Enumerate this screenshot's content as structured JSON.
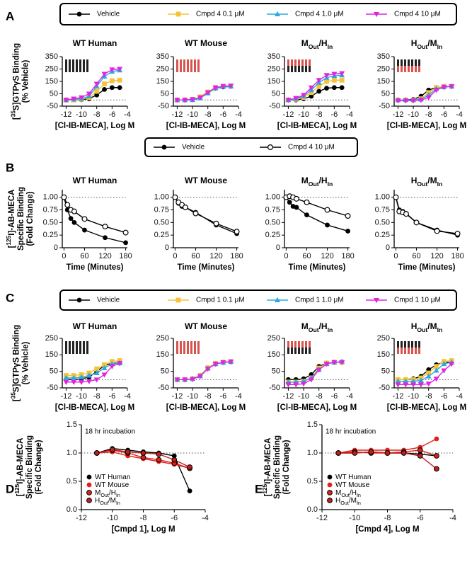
{
  "chart_data": [
    {
      "type": "line",
      "label": "A",
      "xlim": [
        -12.5,
        -4
      ],
      "xticks": [
        -12,
        -10,
        -8,
        -6,
        -4
      ],
      "ylim": [
        -50,
        350
      ],
      "yticks": [
        -50,
        50,
        150,
        250,
        350
      ],
      "reference_line": 0,
      "x": [
        -12,
        -11,
        -10,
        -9,
        -8,
        -7,
        -6,
        -5
      ],
      "xlabel": "[Cl-IB-MECA], Log M",
      "ylabel": [
        [
          {
            "text": "["
          },
          {
            "text": "35",
            "sup": true
          },
          {
            "text": "S]GTPγS Binding"
          }
        ],
        [
          {
            "text": "(% Vehicle)"
          }
        ]
      ],
      "series": [
        {
          "name": "Vehicle",
          "color": "#000000",
          "marker": "circle"
        },
        {
          "name": "Cmpd 4 0.1 μM",
          "color": "#f5c23a",
          "marker": "square"
        },
        {
          "name": "Cmpd 4 1.0 μM",
          "color": "#2aa8e0",
          "marker": "triangle-up"
        },
        {
          "name": "Cmpd 4 10 μM",
          "color": "#e024e0",
          "marker": "triangle-down"
        }
      ],
      "subplots": [
        {
          "title": [
            {
              "text": "WT Human"
            }
          ],
          "values": [
            [
              0,
              0,
              2,
              10,
              40,
              85,
              100,
              100
            ],
            [
              0,
              0,
              5,
              20,
              70,
              130,
              155,
              160
            ],
            [
              0,
              5,
              10,
              30,
              110,
              190,
              230,
              240
            ],
            [
              0,
              10,
              20,
              50,
              130,
              210,
              245,
              250
            ]
          ]
        },
        {
          "title": [
            {
              "text": "WT Mouse"
            }
          ],
          "values": [
            [
              0,
              0,
              5,
              20,
              60,
              95,
              105,
              110
            ],
            [
              0,
              0,
              5,
              25,
              65,
              100,
              110,
              112
            ],
            [
              0,
              0,
              0,
              15,
              55,
              95,
              108,
              110
            ],
            [
              0,
              0,
              5,
              20,
              60,
              100,
              112,
              115
            ]
          ]
        },
        {
          "title": [
            {
              "text": "M"
            },
            {
              "text": "Out",
              "sub": true
            },
            {
              "text": "/H"
            },
            {
              "text": "In",
              "sub": true
            }
          ],
          "values": [
            [
              0,
              0,
              10,
              30,
              70,
              95,
              100,
              100
            ],
            [
              0,
              5,
              20,
              60,
              110,
              150,
              160,
              160
            ],
            [
              0,
              10,
              30,
              80,
              140,
              180,
              195,
              200
            ],
            [
              0,
              15,
              40,
              100,
              160,
              200,
              210,
              215
            ]
          ]
        },
        {
          "title": [
            {
              "text": "H"
            },
            {
              "text": "Out",
              "sub": true
            },
            {
              "text": "/M"
            },
            {
              "text": "In",
              "sub": true
            }
          ],
          "values": [
            [
              0,
              0,
              5,
              30,
              80,
              100,
              105,
              110
            ],
            [
              0,
              0,
              0,
              10,
              60,
              100,
              110,
              110
            ],
            [
              0,
              0,
              0,
              5,
              40,
              90,
              105,
              110
            ],
            [
              -5,
              -5,
              -5,
              0,
              20,
              80,
              105,
              110
            ]
          ]
        }
      ]
    },
    {
      "type": "line",
      "label": "B",
      "xlim": [
        -5,
        185
      ],
      "xticks": [
        0,
        60,
        120,
        180
      ],
      "ylim": [
        0,
        1.15
      ],
      "yticks": [
        0,
        0.25,
        {
          "value": 0.5,
          "label": "0.50"
        },
        0.75,
        {
          "value": 1,
          "label": "1.00"
        }
      ],
      "reference_line": 1,
      "x": [
        0,
        10,
        20,
        30,
        60,
        120,
        180
      ],
      "xlabel": "Time (Minutes)",
      "ylabel": [
        [
          {
            "text": "["
          },
          {
            "text": "125",
            "sup": true
          },
          {
            "text": "I]-AB-MECA"
          }
        ],
        [
          {
            "text": "Specific Binding"
          }
        ],
        [
          {
            "text": "(Fold Change)"
          }
        ]
      ],
      "series": [
        {
          "name": "Vehicle",
          "color": "#000000",
          "marker": "circle"
        },
        {
          "name": "Cmpd 4 10 μM",
          "color": "#000000",
          "marker": "open-circle"
        }
      ],
      "subplots": [
        {
          "title": [
            {
              "text": "WT Human"
            }
          ],
          "values": [
            [
              1.0,
              0.75,
              0.58,
              0.5,
              0.35,
              0.2,
              0.1
            ],
            [
              1.0,
              0.85,
              0.75,
              0.72,
              0.57,
              0.42,
              0.3
            ]
          ]
        },
        {
          "title": [
            {
              "text": "WT Mouse"
            }
          ],
          "values": [
            [
              1.0,
              0.88,
              0.82,
              0.8,
              0.7,
              0.45,
              0.28
            ],
            [
              1.0,
              0.9,
              0.85,
              0.8,
              0.68,
              0.48,
              0.32
            ]
          ]
        },
        {
          "title": [
            {
              "text": "M"
            },
            {
              "text": "Out",
              "sub": true
            },
            {
              "text": "/H"
            },
            {
              "text": "In",
              "sub": true
            }
          ],
          "values": [
            [
              1.0,
              0.9,
              0.82,
              0.8,
              0.65,
              0.45,
              0.33
            ],
            [
              1.0,
              1.02,
              1.0,
              0.97,
              0.9,
              0.75,
              0.63
            ]
          ]
        },
        {
          "title": [
            {
              "text": "H"
            },
            {
              "text": "Out",
              "sub": true
            },
            {
              "text": "/M"
            },
            {
              "text": "In",
              "sub": true
            }
          ],
          "values": [
            [
              1.0,
              0.75,
              0.72,
              0.68,
              0.5,
              0.35,
              0.25
            ],
            [
              1.0,
              0.72,
              0.7,
              0.67,
              0.5,
              0.33,
              0.28
            ]
          ]
        }
      ]
    },
    {
      "type": "line",
      "label": "C",
      "xlim": [
        -12.5,
        -4
      ],
      "xticks": [
        -12,
        -10,
        -8,
        -6,
        -4
      ],
      "ylim": [
        -50,
        250
      ],
      "yticks": [
        -50,
        50,
        150,
        250
      ],
      "reference_line": 0,
      "x": [
        -12,
        -11,
        -10,
        -9,
        -8,
        -7,
        -6,
        -5
      ],
      "xlabel": "[Cl-IB-MECA], Log M",
      "ylabel": [
        [
          {
            "text": "["
          },
          {
            "text": "35",
            "sup": true
          },
          {
            "text": "S]GTPγS Binding"
          }
        ],
        [
          {
            "text": "(% Vehicle)"
          }
        ]
      ],
      "series": [
        {
          "name": "Vehicle",
          "color": "#000000",
          "marker": "circle"
        },
        {
          "name": "Cmpd 1 0.1 μM",
          "color": "#f5c23a",
          "marker": "square"
        },
        {
          "name": "Cmpd 1 1.0 μM",
          "color": "#2aa8e0",
          "marker": "triangle-up"
        },
        {
          "name": "Cmpd 1 10 μM",
          "color": "#e024e0",
          "marker": "triangle-down"
        }
      ],
      "subplots": [
        {
          "title": [
            {
              "text": "WT Human"
            }
          ],
          "values": [
            [
              0,
              0,
              5,
              15,
              50,
              85,
              100,
              100
            ],
            [
              25,
              25,
              30,
              40,
              65,
              90,
              110,
              115
            ],
            [
              10,
              10,
              15,
              25,
              40,
              70,
              95,
              100
            ],
            [
              -15,
              -15,
              -15,
              -10,
              0,
              30,
              80,
              100
            ]
          ]
        },
        {
          "title": [
            {
              "text": "WT Mouse"
            }
          ],
          "values": [
            [
              0,
              0,
              5,
              25,
              70,
              95,
              105,
              108
            ],
            [
              0,
              0,
              5,
              25,
              72,
              98,
              105,
              110
            ],
            [
              0,
              0,
              5,
              22,
              68,
              95,
              103,
              108
            ],
            [
              0,
              0,
              3,
              20,
              65,
              95,
              105,
              108
            ]
          ]
        },
        {
          "title": [
            {
              "text": "M"
            },
            {
              "text": "Out",
              "sub": true
            },
            {
              "text": "/H"
            },
            {
              "text": "In",
              "sub": true
            }
          ],
          "values": [
            [
              0,
              0,
              5,
              30,
              80,
              100,
              105,
              105
            ],
            [
              -15,
              -15,
              -10,
              10,
              70,
              100,
              105,
              105
            ],
            [
              -15,
              -15,
              -10,
              10,
              60,
              95,
              105,
              110
            ],
            [
              -30,
              -30,
              -25,
              0,
              60,
              95,
              105,
              105
            ]
          ]
        },
        {
          "title": [
            {
              "text": "H"
            },
            {
              "text": "Out",
              "sub": true
            },
            {
              "text": "/M"
            },
            {
              "text": "In",
              "sub": true
            }
          ],
          "values": [
            [
              0,
              0,
              5,
              20,
              60,
              90,
              105,
              105
            ],
            [
              0,
              0,
              0,
              10,
              40,
              80,
              110,
              115
            ],
            [
              -10,
              -10,
              -10,
              -5,
              20,
              55,
              95,
              105
            ],
            [
              -30,
              -30,
              -30,
              -30,
              -25,
              5,
              55,
              95
            ]
          ]
        }
      ]
    },
    {
      "type": "line",
      "label": "D",
      "xlim": [
        -12,
        -4
      ],
      "xticks": [
        -12,
        -10,
        -8,
        -6,
        -4
      ],
      "ylim": [
        0,
        1.5
      ],
      "yticks": [
        {
          "value": 0,
          "label": "0.0"
        },
        0.5,
        {
          "value": 1,
          "label": "1.0"
        },
        1.5
      ],
      "reference_line": 1,
      "x": [
        -11,
        -10,
        -9,
        -8,
        -7,
        -6,
        -5
      ],
      "annotation": "18 hr incubation",
      "xlabel": "[Cmpd 1], Log M",
      "ylabel": [
        [
          {
            "text": "["
          },
          {
            "text": "125",
            "sup": true
          },
          {
            "text": "I]-AB-MECA"
          }
        ],
        [
          {
            "text": "Specific Binding"
          }
        ],
        [
          {
            "text": "(Fold Change)"
          }
        ]
      ],
      "series": [
        {
          "name": [
            {
              "text": "WT Human"
            }
          ],
          "color": "#000000",
          "marker": "circle"
        },
        {
          "name": [
            {
              "text": "WT Mouse"
            }
          ],
          "color": "#e0201c",
          "marker": "circle"
        },
        {
          "name": [
            {
              "text": "M"
            },
            {
              "text": "Out",
              "sub": true
            },
            {
              "text": "/H"
            },
            {
              "text": "In",
              "sub": true
            }
          ],
          "color": "#e0201c",
          "marker": "circle-outlined"
        },
        {
          "name": [
            {
              "text": "H"
            },
            {
              "text": "Out",
              "sub": true
            },
            {
              "text": "/M"
            },
            {
              "text": "In",
              "sub": true
            }
          ],
          "color": "#c0201c",
          "marker": "circle-outlined"
        }
      ],
      "subplots": [
        {
          "values": [
            [
              1.0,
              1.08,
              1.05,
              1.02,
              1.0,
              0.95,
              0.33
            ],
            [
              1.0,
              1.02,
              0.95,
              0.9,
              0.85,
              0.8,
              0.73
            ],
            [
              1.0,
              1.05,
              1.0,
              0.92,
              0.88,
              0.82,
              0.73
            ],
            [
              1.0,
              1.06,
              1.02,
              1.0,
              0.98,
              0.88,
              0.75
            ]
          ]
        }
      ]
    },
    {
      "type": "line",
      "label": "E",
      "xlim": [
        -12,
        -4
      ],
      "xticks": [
        -12,
        -10,
        -8,
        -6,
        -4
      ],
      "ylim": [
        0,
        1.5
      ],
      "yticks": [
        {
          "value": 0,
          "label": "0.0"
        },
        0.5,
        {
          "value": 1,
          "label": "1.0"
        },
        1.5
      ],
      "reference_line": 1,
      "x": [
        -11,
        -10,
        -9,
        -8,
        -7,
        -6,
        -5
      ],
      "annotation": "18 hr incubation",
      "xlabel": "[Cmpd 4], Log M",
      "ylabel": [
        [
          {
            "text": "["
          },
          {
            "text": "125",
            "sup": true
          },
          {
            "text": "I]-AB-MECA"
          }
        ],
        [
          {
            "text": "Specific Binding"
          }
        ],
        [
          {
            "text": "(Fold Change)"
          }
        ]
      ],
      "series": [
        {
          "name": [
            {
              "text": "WT Human"
            }
          ],
          "color": "#000000",
          "marker": "circle"
        },
        {
          "name": [
            {
              "text": "WT Mouse"
            }
          ],
          "color": "#e0201c",
          "marker": "circle"
        },
        {
          "name": [
            {
              "text": "M"
            },
            {
              "text": "Out",
              "sub": true
            },
            {
              "text": "/H"
            },
            {
              "text": "In",
              "sub": true
            }
          ],
          "color": "#e0201c",
          "marker": "circle-outlined"
        },
        {
          "name": [
            {
              "text": "H"
            },
            {
              "text": "Out",
              "sub": true
            },
            {
              "text": "/M"
            },
            {
              "text": "In",
              "sub": true
            }
          ],
          "color": "#c0201c",
          "marker": "circle-outlined"
        }
      ],
      "subplots": [
        {
          "values": [
            [
              1.0,
              1.0,
              1.02,
              1.0,
              1.0,
              0.98,
              0.95
            ],
            [
              1.0,
              1.05,
              1.05,
              1.05,
              1.05,
              1.1,
              1.25
            ],
            [
              1.0,
              1.02,
              1.0,
              1.0,
              1.02,
              1.05,
              0.95
            ],
            [
              1.0,
              1.0,
              1.02,
              1.0,
              1.0,
              0.95,
              0.72
            ]
          ]
        }
      ]
    }
  ]
}
